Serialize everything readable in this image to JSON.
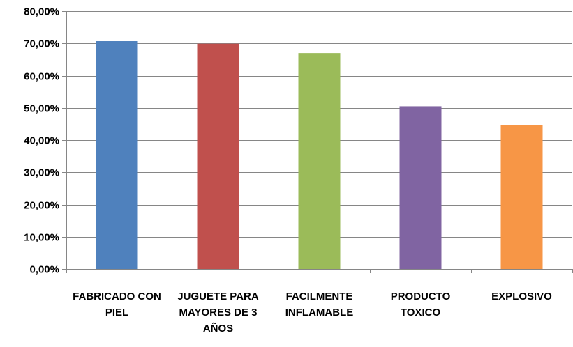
{
  "chart_data": {
    "type": "bar",
    "title": "",
    "xlabel": "",
    "ylabel": "",
    "categories": [
      [
        "FABRICADO CON",
        "PIEL"
      ],
      [
        "JUGUETE PARA",
        "MAYORES DE 3",
        "AÑOS"
      ],
      [
        "FACILMENTE",
        "INFLAMABLE"
      ],
      [
        "PRODUCTO",
        "TOXICO"
      ],
      [
        "EXPLOSIVO"
      ]
    ],
    "values": [
      70.7,
      69.9,
      67.0,
      50.5,
      44.7
    ],
    "colors": [
      "#4f81bd",
      "#c0504d",
      "#9bbb59",
      "#8064a2",
      "#f79646"
    ],
    "ylim": [
      0,
      80
    ],
    "yticks": [
      0,
      10,
      20,
      30,
      40,
      50,
      60,
      70,
      80
    ],
    "ytick_labels": [
      "0,00%",
      "10,00%",
      "20,00%",
      "30,00%",
      "40,00%",
      "50,00%",
      "60,00%",
      "70,00%",
      "80,00%"
    ],
    "grid": true,
    "legend": "none"
  }
}
